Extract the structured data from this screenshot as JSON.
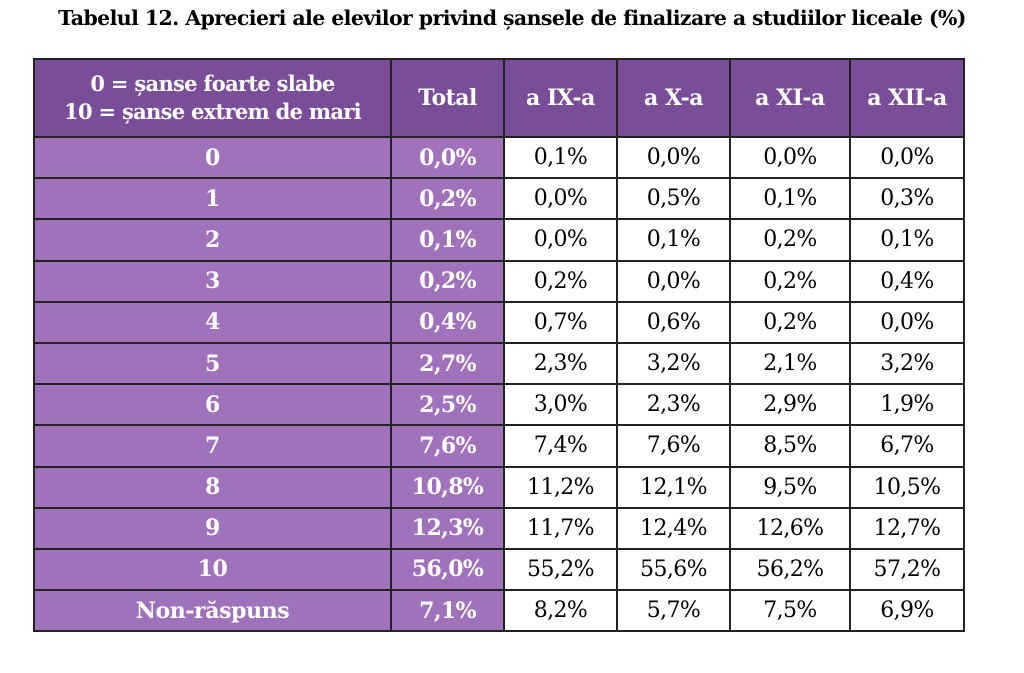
{
  "title": "Tabelul 12. Aprecieri ale elevilor privind șansele de finalizare a studiilor liceale (%)",
  "colors": {
    "header_bg": "#7a4d99",
    "label_bg": "#a072bc",
    "header_text": "#ffffff",
    "value_bg": "#ffffff",
    "border": "#222222"
  },
  "table": {
    "legend_line1": "0 = șanse foarte slabe",
    "legend_line2": "10 = șanse extrem de mari",
    "columns": [
      "Total",
      "a IX-a",
      "a X-a",
      "a XI-a",
      "a XII-a"
    ],
    "rows": [
      {
        "label": "0",
        "total": "0,0%",
        "values": [
          "0,1%",
          "0,0%",
          "0,0%",
          "0,0%"
        ]
      },
      {
        "label": "1",
        "total": "0,2%",
        "values": [
          "0,0%",
          "0,5%",
          "0,1%",
          "0,3%"
        ]
      },
      {
        "label": "2",
        "total": "0,1%",
        "values": [
          "0,0%",
          "0,1%",
          "0,2%",
          "0,1%"
        ]
      },
      {
        "label": "3",
        "total": "0,2%",
        "values": [
          "0,2%",
          "0,0%",
          "0,2%",
          "0,4%"
        ]
      },
      {
        "label": "4",
        "total": "0,4%",
        "values": [
          "0,7%",
          "0,6%",
          "0,2%",
          "0,0%"
        ]
      },
      {
        "label": "5",
        "total": "2,7%",
        "values": [
          "2,3%",
          "3,2%",
          "2,1%",
          "3,2%"
        ]
      },
      {
        "label": "6",
        "total": "2,5%",
        "values": [
          "3,0%",
          "2,3%",
          "2,9%",
          "1,9%"
        ]
      },
      {
        "label": "7",
        "total": "7,6%",
        "values": [
          "7,4%",
          "7,6%",
          "8,5%",
          "6,7%"
        ]
      },
      {
        "label": "8",
        "total": "10,8%",
        "values": [
          "11,2%",
          "12,1%",
          "9,5%",
          "10,5%"
        ]
      },
      {
        "label": "9",
        "total": "12,3%",
        "values": [
          "11,7%",
          "12,4%",
          "12,6%",
          "12,7%"
        ]
      },
      {
        "label": "10",
        "total": "56,0%",
        "values": [
          "55,2%",
          "55,6%",
          "56,2%",
          "57,2%"
        ]
      },
      {
        "label": "Non-răspuns",
        "total": "7,1%",
        "values": [
          "8,2%",
          "5,7%",
          "7,5%",
          "6,9%"
        ]
      }
    ]
  }
}
